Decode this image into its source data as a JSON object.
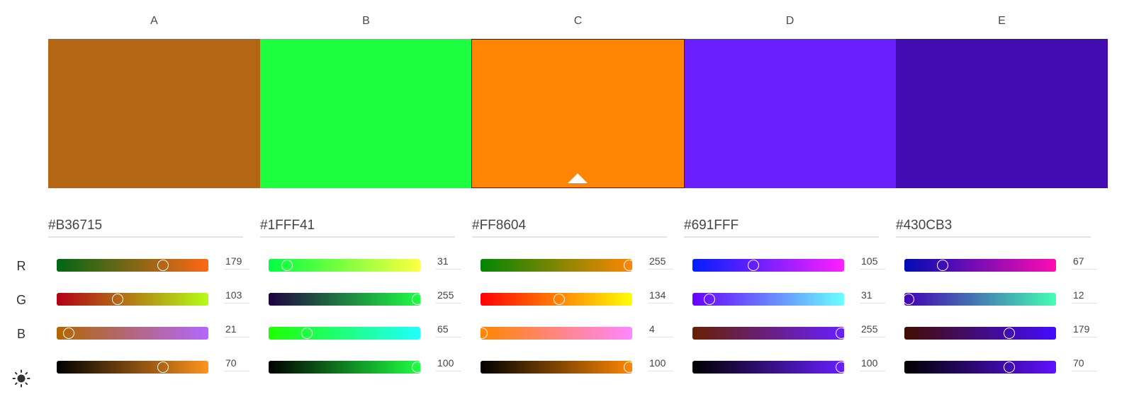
{
  "columns": [
    {
      "letter": "A",
      "hex": "#B36715",
      "color": "#B36715",
      "selected": false,
      "r": {
        "value": "179",
        "fraction": 0.7,
        "gradient": [
          "#006715",
          "#FF6715"
        ]
      },
      "g": {
        "value": "103",
        "fraction": 0.4,
        "gradient": [
          "#B30015",
          "#B3FF15"
        ]
      },
      "b": {
        "value": "21",
        "fraction": 0.08,
        "gradient": [
          "#B36700",
          "#B367FF"
        ]
      },
      "brightness": {
        "value": "70",
        "fraction": 0.7,
        "gradient": [
          "#000000",
          "#FF931E"
        ]
      }
    },
    {
      "letter": "B",
      "hex": "#1FFF41",
      "color": "#1FFF41",
      "selected": false,
      "r": {
        "value": "31",
        "fraction": 0.12,
        "gradient": [
          "#00FF41",
          "#FFFF41"
        ]
      },
      "g": {
        "value": "255",
        "fraction": 0.98,
        "gradient": [
          "#1F0041",
          "#1FFF41"
        ]
      },
      "b": {
        "value": "65",
        "fraction": 0.25,
        "gradient": [
          "#1FFF00",
          "#1FFFFF"
        ]
      },
      "brightness": {
        "value": "100",
        "fraction": 0.98,
        "gradient": [
          "#000000",
          "#1FFF41"
        ]
      }
    },
    {
      "letter": "C",
      "hex": "#FF8604",
      "color": "#FF8604",
      "selected": true,
      "r": {
        "value": "255",
        "fraction": 0.98,
        "gradient": [
          "#008604",
          "#FF8604"
        ]
      },
      "g": {
        "value": "134",
        "fraction": 0.52,
        "gradient": [
          "#FF0004",
          "#FFFF04"
        ]
      },
      "b": {
        "value": "4",
        "fraction": 0.01,
        "gradient": [
          "#FF8600",
          "#FF86FF"
        ]
      },
      "brightness": {
        "value": "100",
        "fraction": 0.98,
        "gradient": [
          "#000000",
          "#FF8604"
        ]
      }
    },
    {
      "letter": "D",
      "hex": "#691FFF",
      "color": "#691FFF",
      "selected": false,
      "r": {
        "value": "105",
        "fraction": 0.4,
        "gradient": [
          "#001FFF",
          "#FF1FFF"
        ]
      },
      "g": {
        "value": "31",
        "fraction": 0.11,
        "gradient": [
          "#6900FF",
          "#69FFFF"
        ]
      },
      "b": {
        "value": "255",
        "fraction": 0.98,
        "gradient": [
          "#691F00",
          "#691FFF"
        ]
      },
      "brightness": {
        "value": "100",
        "fraction": 0.98,
        "gradient": [
          "#000000",
          "#691FFF"
        ]
      }
    },
    {
      "letter": "E",
      "hex": "#430CB3",
      "color": "#430CB3",
      "selected": false,
      "r": {
        "value": "67",
        "fraction": 0.25,
        "gradient": [
          "#000CB3",
          "#FF0CB3"
        ]
      },
      "g": {
        "value": "12",
        "fraction": 0.03,
        "gradient": [
          "#4300B3",
          "#43FFB3"
        ]
      },
      "b": {
        "value": "179",
        "fraction": 0.69,
        "gradient": [
          "#430C00",
          "#430CFF"
        ]
      },
      "brightness": {
        "value": "70",
        "fraction": 0.69,
        "gradient": [
          "#000000",
          "#6011FF"
        ]
      }
    }
  ],
  "row_labels": {
    "r": "R",
    "g": "G",
    "b": "B",
    "brightness_icon": "sun-icon"
  }
}
